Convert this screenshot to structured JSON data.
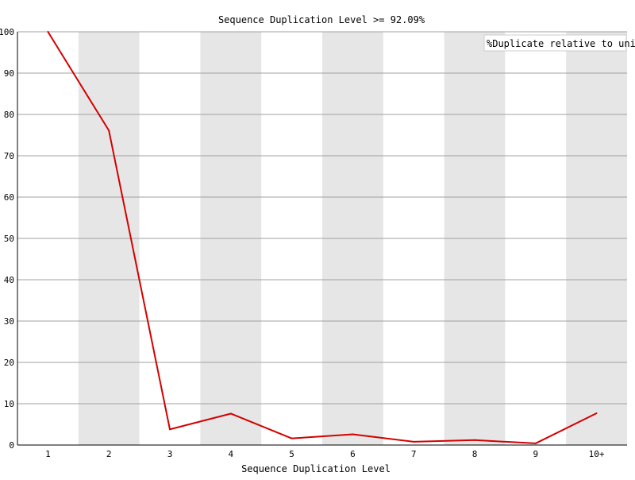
{
  "chart_data": {
    "type": "line",
    "title": "Sequence Duplication Level >= 92.09%",
    "xlabel": "Sequence Duplication Level",
    "ylabel": "",
    "categories": [
      "1",
      "2",
      "3",
      "4",
      "5",
      "6",
      "7",
      "8",
      "9",
      "10+"
    ],
    "series": [
      {
        "name": "%Duplicate relative to unique",
        "color": "#d40000",
        "values": [
          100,
          76.1,
          3.8,
          7.6,
          1.6,
          2.6,
          0.8,
          1.2,
          0.4,
          7.7
        ]
      }
    ],
    "ylim": [
      0,
      100
    ],
    "yticks": [
      0,
      10,
      20,
      30,
      40,
      50,
      60,
      70,
      80,
      90,
      100
    ],
    "grid": true,
    "alternating_bands": true,
    "band_color": "#e6e6e6",
    "legend_position": "top-right"
  }
}
